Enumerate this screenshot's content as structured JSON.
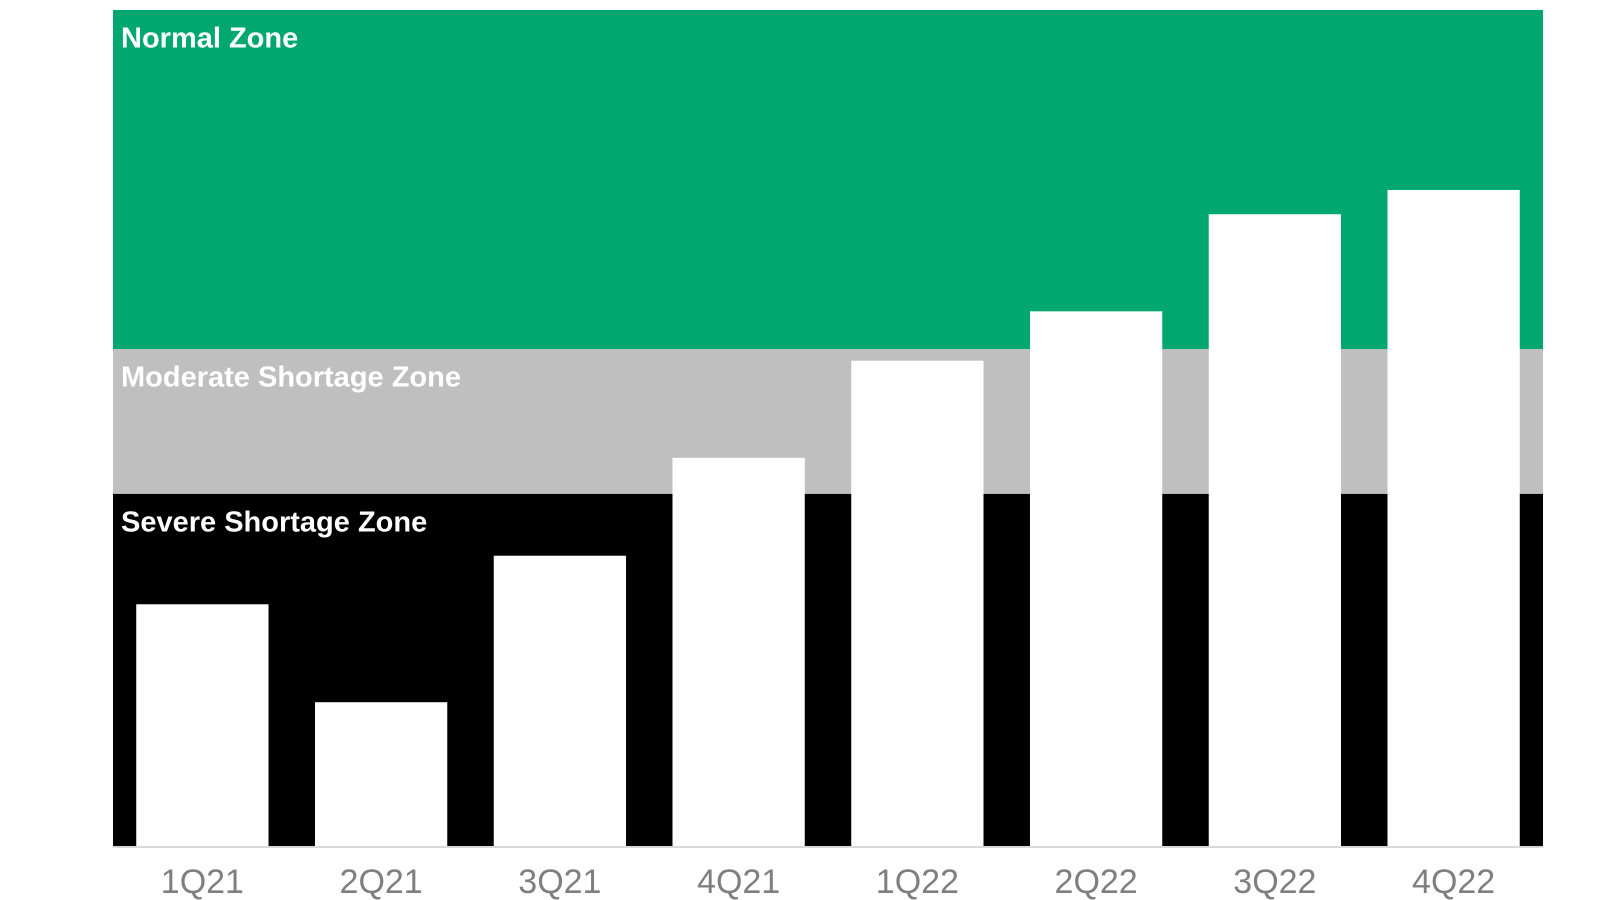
{
  "chart_data": {
    "type": "bar",
    "categories": [
      "1Q21",
      "2Q21",
      "3Q21",
      "4Q21",
      "1Q22",
      "2Q22",
      "3Q22",
      "4Q22"
    ],
    "values": [
      29.0,
      17.3,
      34.8,
      46.5,
      58.1,
      64.0,
      75.6,
      78.5
    ],
    "color": "#ffffff",
    "ylim": [
      0,
      100
    ],
    "zones": [
      {
        "label": "Severe Shortage Zone",
        "from": 0,
        "to": 42.2,
        "color": "#000000"
      },
      {
        "label": "Moderate Shortage Zone",
        "from": 42.2,
        "to": 59.5,
        "color": "#bfbfbf"
      },
      {
        "label": "Normal Zone",
        "from": 59.5,
        "to": 100,
        "color": "#00a76f"
      }
    ]
  }
}
